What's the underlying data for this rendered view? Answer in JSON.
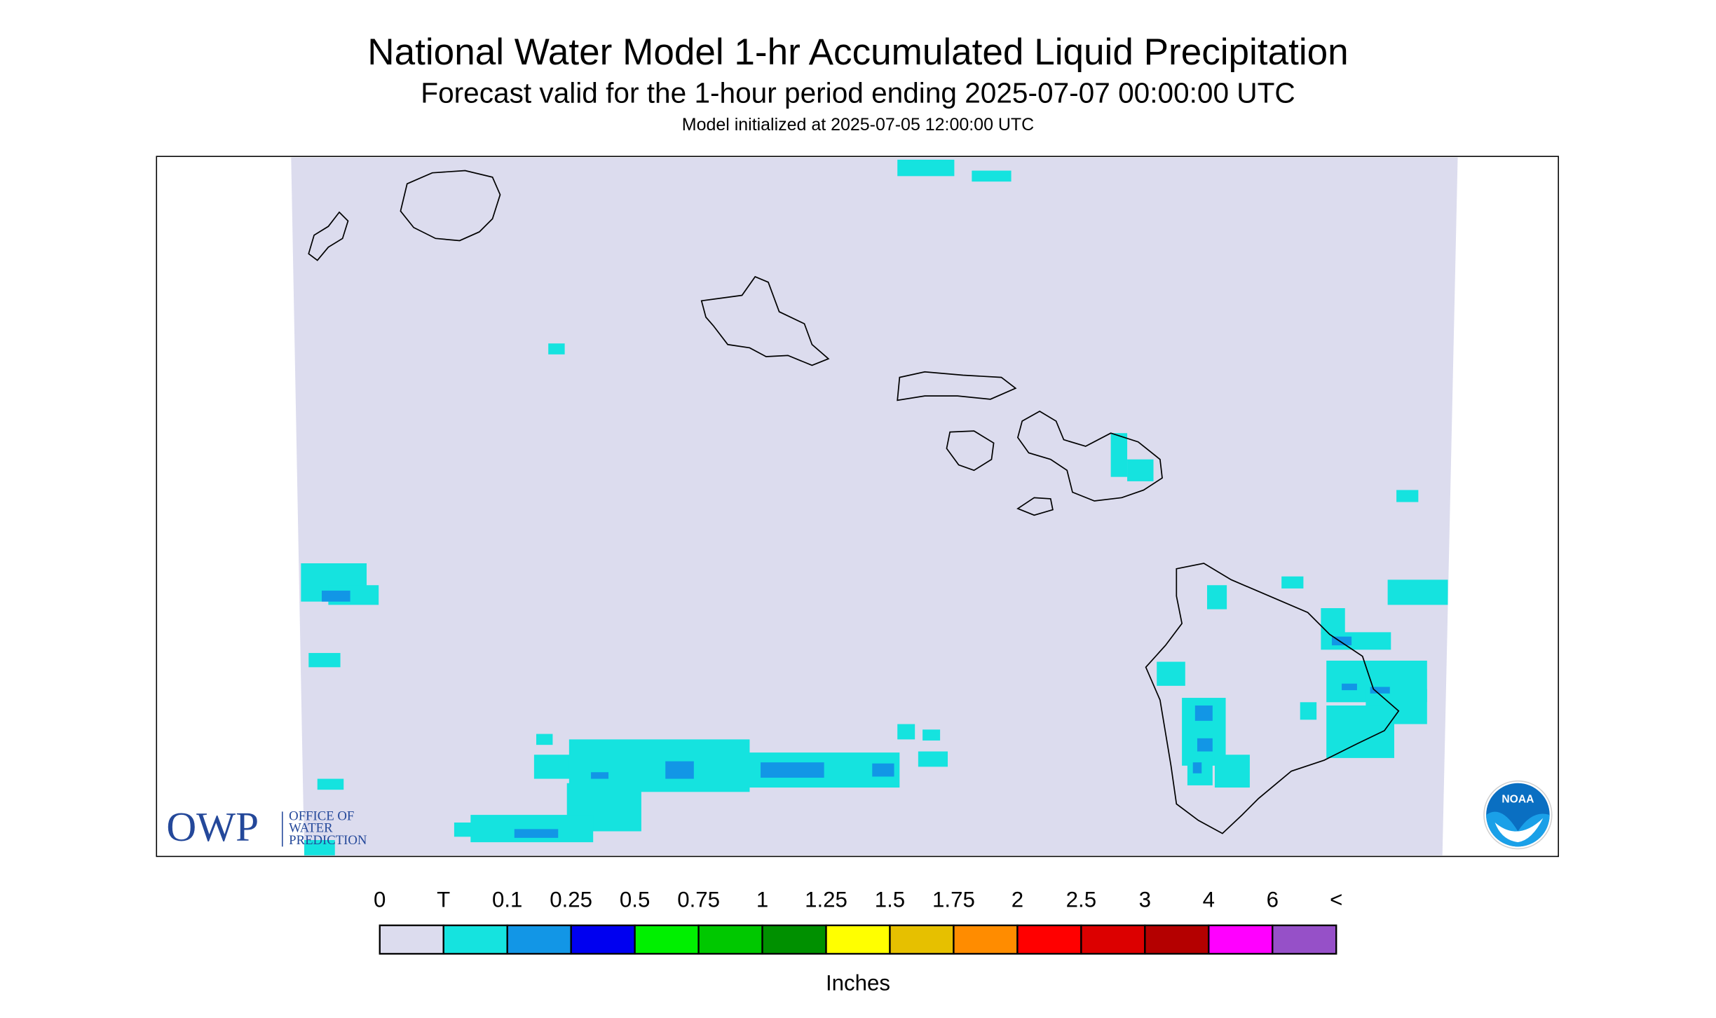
{
  "header": {
    "title": "National Water Model 1-hr Accumulated Liquid Precipitation",
    "subtitle": "Forecast valid for the 1-hour period ending 2025-07-07 00:00:00 UTC",
    "init": "Model initialized at 2025-07-05 12:00:00 UTC"
  },
  "legend": {
    "labels": [
      "0",
      "T",
      "0.1",
      "0.25",
      "0.5",
      "0.75",
      "1",
      "1.25",
      "1.5",
      "1.75",
      "2",
      "2.5",
      "3",
      "4",
      "6",
      "<"
    ],
    "colors": [
      "#dcdcee",
      "#15e3df",
      "#1296e6",
      "#0000f0",
      "#00f000",
      "#00c800",
      "#009000",
      "#ffff00",
      "#e6c000",
      "#ff8c00",
      "#ff0000",
      "#dc0000",
      "#b40000",
      "#ff00ff",
      "#9650c8"
    ],
    "unit": "Inches"
  },
  "logos": {
    "owp": "OWP",
    "owp_lines": [
      "OFFICE OF",
      "WATER",
      "PREDICTION"
    ],
    "noaa": "NOAA"
  }
}
